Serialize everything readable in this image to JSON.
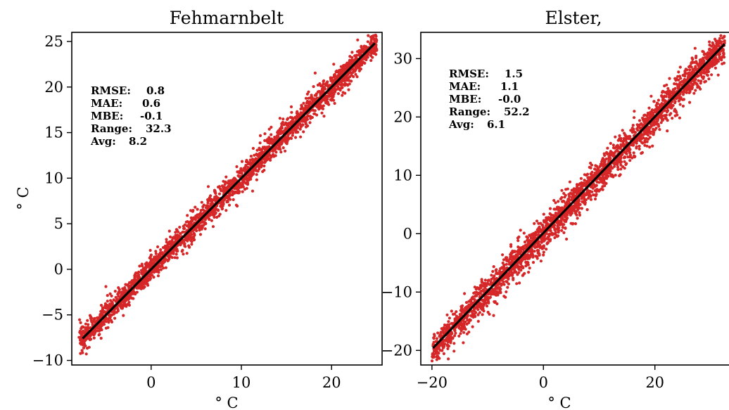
{
  "colors": {
    "points": "#d62728",
    "fit_line": "#000000"
  },
  "chart_data": [
    {
      "type": "scatter",
      "title": "Fehmarnbelt",
      "xlabel": "° C",
      "ylabel": "° C",
      "xlim": [
        -8.8,
        25.6
      ],
      "ylim": [
        -10.5,
        26.0
      ],
      "xticks": [
        0,
        10,
        20
      ],
      "yticks": [
        -10,
        -5,
        0,
        5,
        10,
        15,
        20,
        25
      ],
      "tick_labels_x": [
        "0",
        "10",
        "20"
      ],
      "tick_labels_y": [
        "−10",
        "−5",
        "0",
        "5",
        "10",
        "15",
        "20",
        "25"
      ],
      "grid": false,
      "points_range": [
        -8.0,
        25.0
      ],
      "fit_line": {
        "x": [
          -7.6,
          24.8
        ],
        "y": [
          -7.6,
          24.8
        ]
      },
      "stats": [
        {
          "label": "RMSE:",
          "value": "0.8"
        },
        {
          "label": "MAE:",
          "value": "0.6"
        },
        {
          "label": "MBE:",
          "value": "-0.1"
        },
        {
          "label": "Range:",
          "value": "32.3"
        },
        {
          "label": "Avg:",
          "value": "8.2"
        }
      ]
    },
    {
      "type": "scatter",
      "title": "Elster,",
      "xlabel": "° C",
      "ylabel": "",
      "xlim": [
        -22.0,
        33.8
      ],
      "ylim": [
        -22.5,
        34.5
      ],
      "xticks": [
        -20,
        0,
        20
      ],
      "yticks": [
        -20,
        -10,
        0,
        10,
        20,
        30
      ],
      "tick_labels_x": [
        "−20",
        "0",
        "20"
      ],
      "tick_labels_y": [
        "−20",
        "−10",
        "0",
        "10",
        "20",
        "30"
      ],
      "grid": false,
      "points_range": [
        -20.0,
        32.5
      ],
      "fit_line": {
        "x": [
          -19.8,
          32.5
        ],
        "y": [
          -19.6,
          32.5
        ]
      },
      "stats": [
        {
          "label": "RMSE:",
          "value": "1.5"
        },
        {
          "label": "MAE:",
          "value": "1.1"
        },
        {
          "label": "MBE:",
          "value": "-0.0"
        },
        {
          "label": "Range:",
          "value": "52.2"
        },
        {
          "label": "Avg:",
          "value": "6.1"
        }
      ]
    }
  ]
}
